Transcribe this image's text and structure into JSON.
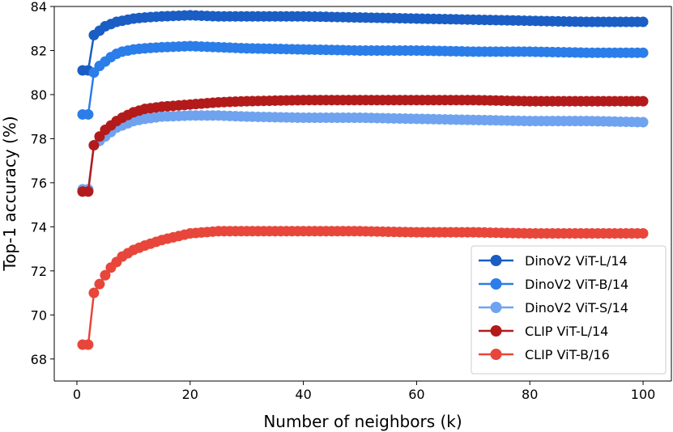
{
  "chart_data": {
    "type": "line",
    "title": "",
    "xlabel": "Number of neighbors (k)",
    "ylabel": "Top-1 accuracy (%)",
    "xlim": [
      -4,
      105
    ],
    "ylim": [
      67.0,
      84.0
    ],
    "xticks": [
      0,
      20,
      40,
      60,
      80,
      100
    ],
    "yticks": [
      68,
      70,
      72,
      74,
      76,
      78,
      80,
      82,
      84
    ],
    "grid": false,
    "legend_position": "bottom-right",
    "k_values": [
      1,
      2,
      3,
      4,
      5,
      6,
      7,
      8,
      9,
      10,
      11,
      12,
      13,
      14,
      15,
      16,
      17,
      18,
      19,
      20,
      21,
      22,
      23,
      24,
      25,
      26,
      27,
      28,
      29,
      30,
      31,
      32,
      33,
      34,
      35,
      36,
      37,
      38,
      39,
      40,
      41,
      42,
      43,
      44,
      45,
      46,
      47,
      48,
      49,
      50,
      51,
      52,
      53,
      54,
      55,
      56,
      57,
      58,
      59,
      60,
      61,
      62,
      63,
      64,
      65,
      66,
      67,
      68,
      69,
      70,
      71,
      72,
      73,
      74,
      75,
      76,
      77,
      78,
      79,
      80,
      81,
      82,
      83,
      84,
      85,
      86,
      87,
      88,
      89,
      90,
      91,
      92,
      93,
      94,
      95,
      96,
      97,
      98,
      99,
      100
    ],
    "series": [
      {
        "name": "DinoV2 ViT-L/14",
        "color": "#1a5dc4",
        "anchors": [
          [
            1,
            81.1
          ],
          [
            2,
            81.1
          ],
          [
            3,
            82.7
          ],
          [
            4,
            82.9
          ],
          [
            5,
            83.1
          ],
          [
            6,
            83.2
          ],
          [
            7,
            83.3
          ],
          [
            8,
            83.35
          ],
          [
            10,
            83.45
          ],
          [
            12,
            83.5
          ],
          [
            15,
            83.55
          ],
          [
            20,
            83.6
          ],
          [
            25,
            83.55
          ],
          [
            30,
            83.55
          ],
          [
            40,
            83.55
          ],
          [
            50,
            83.5
          ],
          [
            60,
            83.45
          ],
          [
            70,
            83.4
          ],
          [
            80,
            83.35
          ],
          [
            90,
            83.3
          ],
          [
            100,
            83.3
          ]
        ]
      },
      {
        "name": "DinoV2 ViT-B/14",
        "color": "#2b7de9",
        "anchors": [
          [
            1,
            79.1
          ],
          [
            2,
            79.1
          ],
          [
            3,
            81.0
          ],
          [
            4,
            81.3
          ],
          [
            5,
            81.5
          ],
          [
            6,
            81.7
          ],
          [
            7,
            81.85
          ],
          [
            8,
            81.95
          ],
          [
            10,
            82.05
          ],
          [
            12,
            82.1
          ],
          [
            15,
            82.15
          ],
          [
            20,
            82.2
          ],
          [
            25,
            82.15
          ],
          [
            30,
            82.1
          ],
          [
            40,
            82.05
          ],
          [
            50,
            82.0
          ],
          [
            60,
            82.0
          ],
          [
            70,
            81.95
          ],
          [
            80,
            81.95
          ],
          [
            90,
            81.9
          ],
          [
            100,
            81.9
          ]
        ]
      },
      {
        "name": "DinoV2 ViT-S/14",
        "color": "#6fa3f0",
        "anchors": [
          [
            1,
            75.7
          ],
          [
            2,
            75.7
          ],
          [
            3,
            77.7
          ],
          [
            4,
            77.9
          ],
          [
            5,
            78.1
          ],
          [
            6,
            78.3
          ],
          [
            7,
            78.5
          ],
          [
            8,
            78.6
          ],
          [
            10,
            78.8
          ],
          [
            12,
            78.9
          ],
          [
            15,
            79.0
          ],
          [
            20,
            79.05
          ],
          [
            25,
            79.05
          ],
          [
            30,
            79.0
          ],
          [
            40,
            78.95
          ],
          [
            50,
            78.95
          ],
          [
            60,
            78.9
          ],
          [
            70,
            78.85
          ],
          [
            80,
            78.8
          ],
          [
            90,
            78.8
          ],
          [
            100,
            78.75
          ]
        ]
      },
      {
        "name": "CLIP ViT-L/14",
        "color": "#b31b1b",
        "anchors": [
          [
            1,
            75.6
          ],
          [
            2,
            75.6
          ],
          [
            3,
            77.7
          ],
          [
            4,
            78.1
          ],
          [
            5,
            78.4
          ],
          [
            6,
            78.6
          ],
          [
            7,
            78.8
          ],
          [
            8,
            78.95
          ],
          [
            10,
            79.2
          ],
          [
            12,
            79.35
          ],
          [
            15,
            79.45
          ],
          [
            20,
            79.55
          ],
          [
            25,
            79.65
          ],
          [
            30,
            79.7
          ],
          [
            40,
            79.75
          ],
          [
            50,
            79.75
          ],
          [
            60,
            79.75
          ],
          [
            70,
            79.75
          ],
          [
            80,
            79.7
          ],
          [
            90,
            79.7
          ],
          [
            100,
            79.7
          ]
        ]
      },
      {
        "name": "CLIP ViT-B/16",
        "color": "#e8463a",
        "anchors": [
          [
            1,
            68.65
          ],
          [
            2,
            68.65
          ],
          [
            3,
            71.0
          ],
          [
            4,
            71.4
          ],
          [
            5,
            71.8
          ],
          [
            6,
            72.15
          ],
          [
            7,
            72.4
          ],
          [
            8,
            72.65
          ],
          [
            10,
            72.95
          ],
          [
            12,
            73.15
          ],
          [
            15,
            73.4
          ],
          [
            20,
            73.7
          ],
          [
            25,
            73.8
          ],
          [
            30,
            73.8
          ],
          [
            40,
            73.8
          ],
          [
            50,
            73.8
          ],
          [
            60,
            73.75
          ],
          [
            70,
            73.75
          ],
          [
            80,
            73.7
          ],
          [
            90,
            73.7
          ],
          [
            100,
            73.7
          ]
        ]
      }
    ]
  }
}
